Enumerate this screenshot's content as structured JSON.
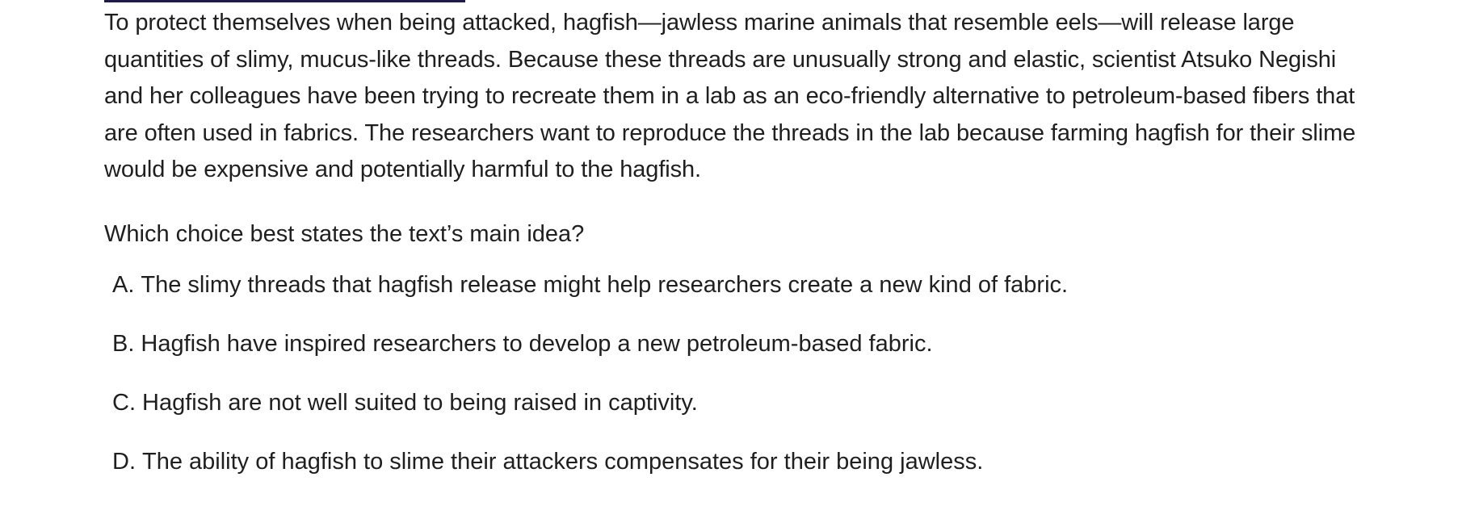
{
  "passage": "To protect themselves when being attacked, hagfish—jawless marine animals that resemble eels—will release large quantities of slimy, mucus-like threads. Because these threads are unusually strong and elastic, scientist Atsuko Negishi and her colleagues have been trying to recreate them in a lab as an eco-friendly alternative to petroleum-based fibers that are often used in fabrics. The researchers want to reproduce the threads in the lab because farming hagfish for their slime would be expensive and potentially harmful to the hagfish.",
  "question": "Which choice best states the text’s main idea?",
  "choices": [
    {
      "letter": "A.",
      "text": "The slimy threads that hagfish release might help researchers create a new kind of fabric."
    },
    {
      "letter": "B.",
      "text": "Hagfish have inspired researchers to develop a new petroleum-based fabric."
    },
    {
      "letter": "C.",
      "text": "Hagfish are not well suited to being raised in captivity."
    },
    {
      "letter": "D.",
      "text": "The ability of hagfish to slime their attackers compensates for their being jawless."
    }
  ]
}
